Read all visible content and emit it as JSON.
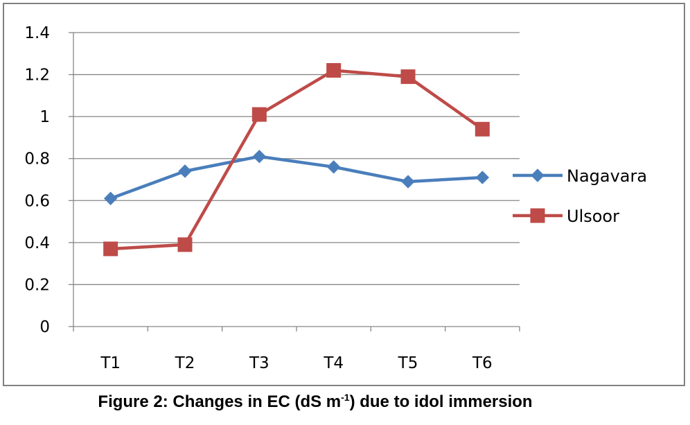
{
  "chart_data": {
    "type": "line",
    "categories": [
      "T1",
      "T2",
      "T3",
      "T4",
      "T5",
      "T6"
    ],
    "series": [
      {
        "name": "Nagavara",
        "values": [
          0.61,
          0.74,
          0.81,
          0.76,
          0.69,
          0.71
        ],
        "color": "#4A7EBB",
        "marker": "diamond"
      },
      {
        "name": "Ulsoor",
        "values": [
          0.37,
          0.39,
          1.01,
          1.22,
          1.19,
          0.94
        ],
        "color": "#BE4B48",
        "marker": "square"
      }
    ],
    "ylim": [
      0,
      1.4
    ],
    "yticks": [
      0,
      0.2,
      0.4,
      0.6,
      0.8,
      1,
      1.2,
      1.4
    ],
    "ytick_labels": [
      "0",
      "0.2",
      "0.4",
      "0.6",
      "0.8",
      "1",
      "1.2",
      "1.4"
    ],
    "grid": "horizontal",
    "legend_position": "right",
    "caption": {
      "prefix": "Figure 2: Changes in EC (dS m",
      "superscript": "-1",
      "suffix": ") due to idol immersion"
    }
  },
  "colors": {
    "gridline": "#868686",
    "axis": "#868686",
    "frame_border": "#808080"
  }
}
